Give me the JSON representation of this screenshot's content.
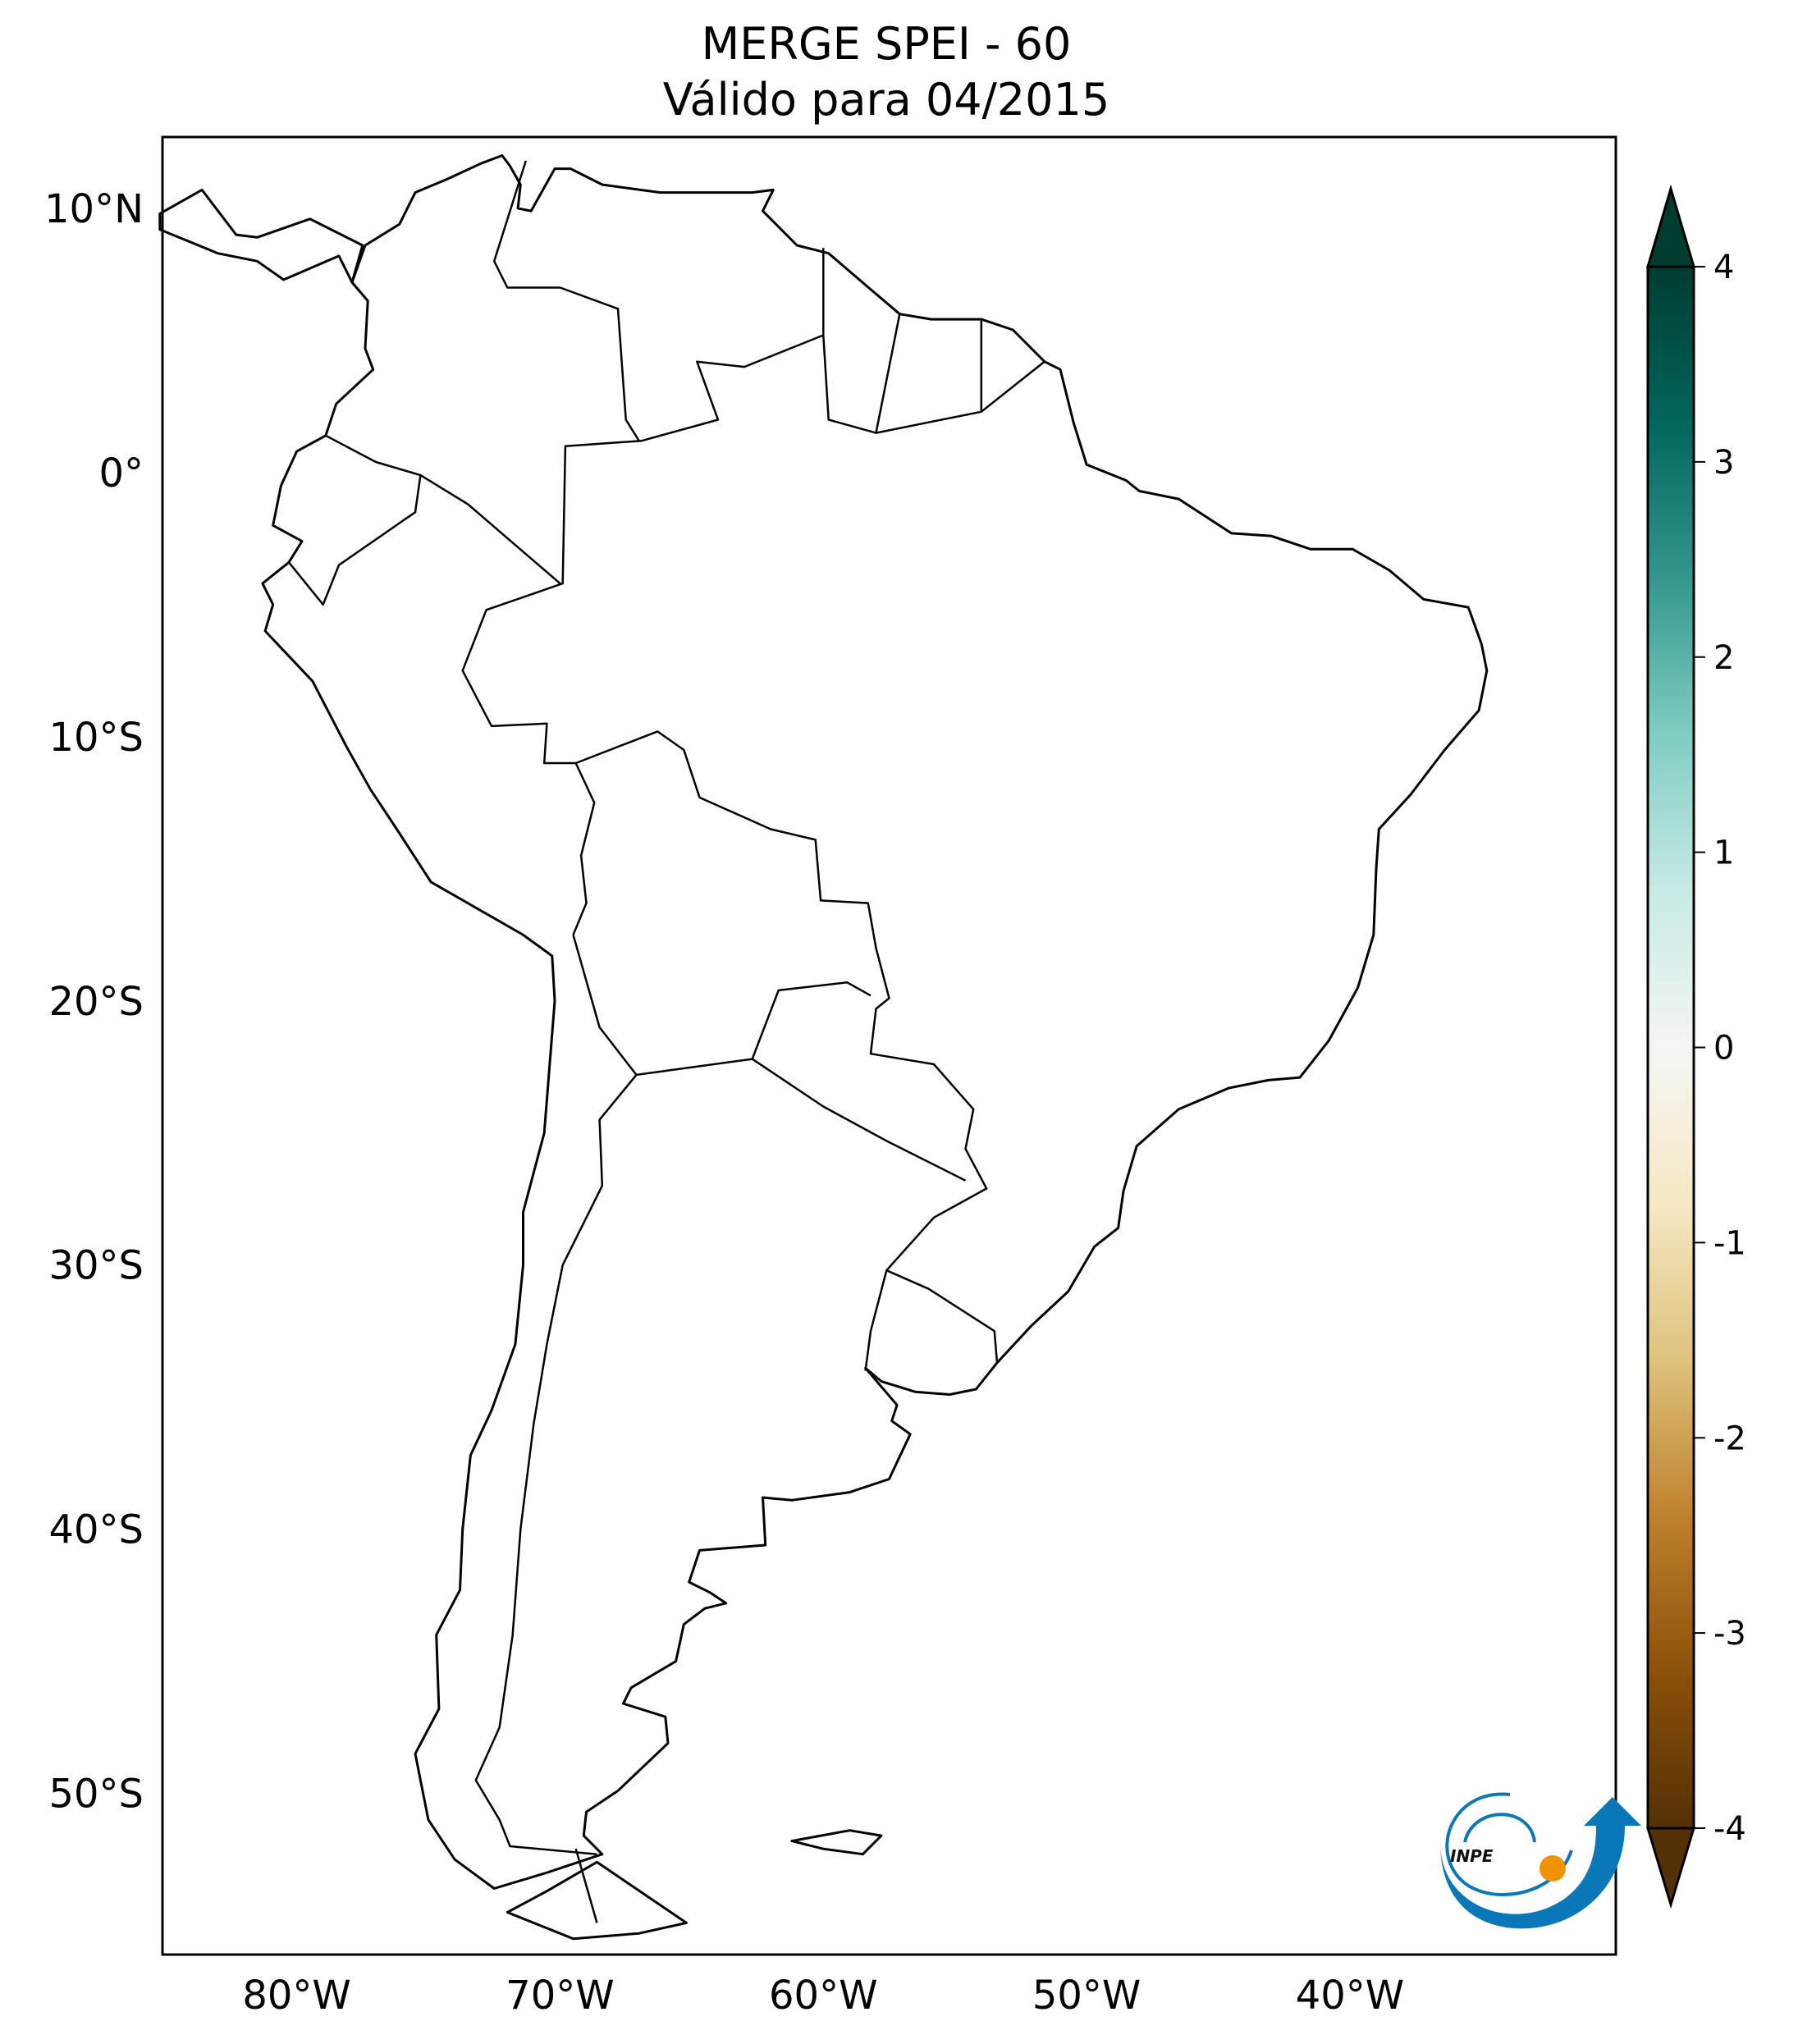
{
  "header": {
    "title_line1": "MERGE   SPEI - 60",
    "title_line2": "Válido para 04/2015"
  },
  "logo": {
    "text": "INPE"
  },
  "chart_data": {
    "type": "heatmap",
    "title": "MERGE   SPEI - 60",
    "subtitle": "Válido para 04/2015",
    "variable": "SPEI - 60",
    "xlim": [
      -85.1,
      -29.9
    ],
    "ylim": [
      -56.1,
      12.7
    ],
    "x_ticks": [
      -80,
      -70,
      -60,
      -50,
      -40
    ],
    "x_tick_labels": [
      "80°W",
      "70°W",
      "60°W",
      "50°W",
      "40°W"
    ],
    "y_ticks": [
      10,
      0,
      -10,
      -20,
      -30,
      -40,
      -50
    ],
    "y_tick_labels": [
      "10°N",
      "0°",
      "10°S",
      "20°S",
      "30°S",
      "40°S",
      "50°S"
    ],
    "grid": false,
    "colorbar": {
      "range": [
        -4,
        4
      ],
      "ticks": [
        4,
        3,
        2,
        1,
        0,
        -1,
        -2,
        -3,
        -4
      ],
      "tick_labels": [
        "4",
        "3",
        "2",
        "1",
        "0",
        "-1",
        "-2",
        "-3",
        "-4"
      ],
      "extend": "both",
      "colors": [
        "#003c30",
        "#01665e",
        "#35978f",
        "#80cdc1",
        "#c7eae5",
        "#f5f5f5",
        "#f6e8c3",
        "#dfc27d",
        "#bf812d",
        "#8c510a",
        "#543005"
      ]
    },
    "colorbar_placement": "right"
  }
}
